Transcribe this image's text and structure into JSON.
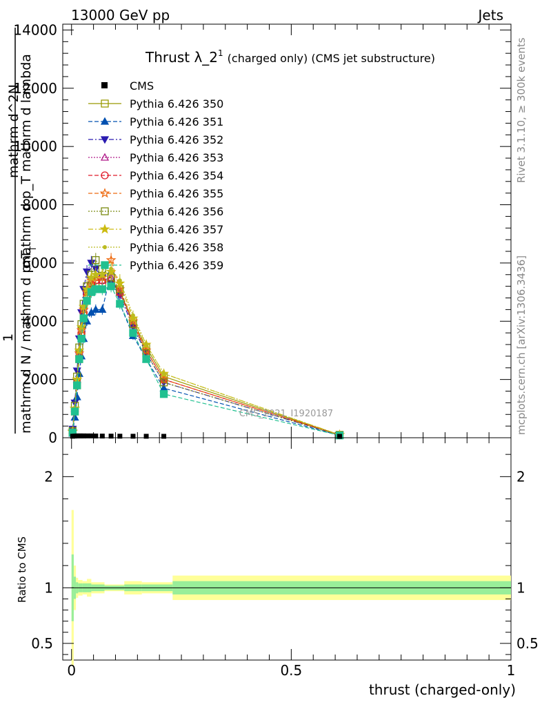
{
  "header": {
    "energy_label": "13000 GeV pp",
    "category_label": "Jets"
  },
  "side": {
    "rivet_label": "Rivet 3.1.10, ≥ 300k events",
    "mcplots_label": "mcplots.cern.ch [arXiv:1306.3436]"
  },
  "chart_data": [
    {
      "type": "line",
      "title_main": "Thrust λ_2",
      "title_sup": "1",
      "title_suffix": "(charged only) (CMS jet substructure)",
      "ylabel_numerator": "mathrm d^2N",
      "ylabel_fraction_label": "mathrm d p_T mathrm d lambda",
      "ylabel_one": "1",
      "ylabel_denominator": "mathrm d N / mathrm d p_T",
      "ylabel_subscript": "T",
      "watermark": "CMS_2021_I1920187",
      "xlim": [
        -0.02,
        1.0
      ],
      "ylim": [
        0,
        14200
      ],
      "yticks": [
        0,
        2000,
        4000,
        6000,
        8000,
        10000,
        12000,
        14000
      ],
      "ytick_labels": [
        "0",
        "2000",
        "4000",
        "6000",
        "8000",
        "10000",
        "12000",
        "14000"
      ],
      "x": [
        0.0025,
        0.0075,
        0.0125,
        0.0175,
        0.0225,
        0.0275,
        0.035,
        0.045,
        0.055,
        0.07,
        0.09,
        0.11,
        0.14,
        0.17,
        0.21,
        0.61
      ],
      "cms_values": [
        5,
        10,
        15,
        15,
        15,
        15,
        15,
        15,
        12,
        10,
        8,
        6,
        4,
        3,
        2,
        0.1
      ],
      "series": [
        {
          "name": "Pythia 6.426 350",
          "color": "#999900",
          "marker": "square-open",
          "dash": "solid",
          "values": [
            200,
            900,
            1800,
            2700,
            3500,
            4200,
            4800,
            5200,
            5300,
            5300,
            5400,
            5000,
            4000,
            3100,
            2100,
            100
          ]
        },
        {
          "name": "Pythia 6.426 351",
          "color": "#0050b0",
          "marker": "triangle-up",
          "dash": "dashed",
          "values": [
            150,
            700,
            1400,
            2200,
            2800,
            3400,
            4000,
            4300,
            4400,
            4400,
            5700,
            4600,
            3500,
            2700,
            1700,
            80
          ]
        },
        {
          "name": "Pythia 6.426 352",
          "color": "#2a1bb0",
          "marker": "triangle-down",
          "dash": "dashdot",
          "values": [
            300,
            1200,
            2300,
            3400,
            4300,
            5100,
            5700,
            6000,
            5800,
            5500,
            5300,
            4900,
            3800,
            2900,
            1900,
            90
          ]
        },
        {
          "name": "Pythia 6.426 353",
          "color": "#b01a8a",
          "marker": "triangle-open",
          "dash": "dotted",
          "values": [
            250,
            1000,
            2000,
            3000,
            3800,
            4500,
            5100,
            5400,
            5500,
            5400,
            5500,
            5000,
            3900,
            3000,
            2000,
            95
          ]
        },
        {
          "name": "Pythia 6.426 354",
          "color": "#e01a2a",
          "marker": "circle-open",
          "dash": "dashed",
          "values": [
            200,
            950,
            1900,
            2800,
            3600,
            4300,
            4900,
            5300,
            5400,
            5400,
            5500,
            5000,
            3900,
            3000,
            2000,
            95
          ]
        },
        {
          "name": "Pythia 6.426 355",
          "color": "#ee6a10",
          "marker": "star-open",
          "dash": "dashed",
          "values": [
            220,
            1000,
            2000,
            2900,
            3700,
            4400,
            5000,
            5400,
            5500,
            5500,
            6100,
            5100,
            4000,
            3000,
            2000,
            95
          ]
        },
        {
          "name": "Pythia 6.426 356",
          "color": "#7a8a10",
          "marker": "square-open",
          "dash": "dotted",
          "values": [
            230,
            1100,
            2100,
            3100,
            3900,
            4600,
            5200,
            5600,
            6100,
            5800,
            5500,
            5100,
            3900,
            2900,
            1900,
            90
          ]
        },
        {
          "name": "Pythia 6.426 357",
          "color": "#ccbb10",
          "marker": "star",
          "dash": "dashdot",
          "values": [
            200,
            1000,
            2000,
            3000,
            3800,
            4500,
            5100,
            5500,
            5600,
            5600,
            5700,
            5300,
            4100,
            3200,
            2200,
            100
          ]
        },
        {
          "name": "Pythia 6.426 358",
          "color": "#bbbb20",
          "marker": "dot",
          "dash": "dotted",
          "values": [
            210,
            1000,
            2000,
            3000,
            3800,
            4500,
            5100,
            5500,
            5600,
            5600,
            5800,
            5400,
            4200,
            3200,
            2200,
            100
          ]
        },
        {
          "name": "Pythia 6.426 359",
          "color": "#20c090",
          "marker": "square",
          "dash": "dashed",
          "values": [
            180,
            900,
            1800,
            2700,
            3400,
            4100,
            4700,
            5000,
            5100,
            5100,
            5200,
            4600,
            3600,
            2700,
            1500,
            80
          ]
        }
      ],
      "legend": {
        "cms_label": "CMS",
        "position": "top-left"
      }
    },
    {
      "type": "area",
      "ylabel": "Ratio to CMS",
      "xlabel": "thrust (charged-only)",
      "xlim": [
        -0.02,
        1.0
      ],
      "ylim": [
        0.35,
        2.35
      ],
      "xticks": [
        0,
        0.5,
        1
      ],
      "xtick_labels": [
        "0",
        "0.5",
        "1"
      ],
      "yticks": [
        0.5,
        1,
        2
      ],
      "ytick_labels": [
        "0.5",
        "1",
        "2"
      ],
      "bins": [
        {
          "lo": 0.0,
          "hi": 0.005,
          "stat": 0.3,
          "tot": 0.7
        },
        {
          "lo": 0.005,
          "hi": 0.01,
          "stat": 0.1,
          "tot": 0.2
        },
        {
          "lo": 0.01,
          "hi": 0.015,
          "stat": 0.05,
          "tot": 0.09
        },
        {
          "lo": 0.015,
          "hi": 0.025,
          "stat": 0.04,
          "tot": 0.07
        },
        {
          "lo": 0.025,
          "hi": 0.035,
          "stat": 0.04,
          "tot": 0.06
        },
        {
          "lo": 0.035,
          "hi": 0.045,
          "stat": 0.04,
          "tot": 0.08
        },
        {
          "lo": 0.045,
          "hi": 0.075,
          "stat": 0.03,
          "tot": 0.05
        },
        {
          "lo": 0.075,
          "hi": 0.12,
          "stat": 0.02,
          "tot": 0.03
        },
        {
          "lo": 0.12,
          "hi": 0.16,
          "stat": 0.03,
          "tot": 0.06
        },
        {
          "lo": 0.16,
          "hi": 0.23,
          "stat": 0.03,
          "tot": 0.05
        },
        {
          "lo": 0.23,
          "hi": 1.0,
          "stat": 0.06,
          "tot": 0.11
        }
      ]
    }
  ]
}
